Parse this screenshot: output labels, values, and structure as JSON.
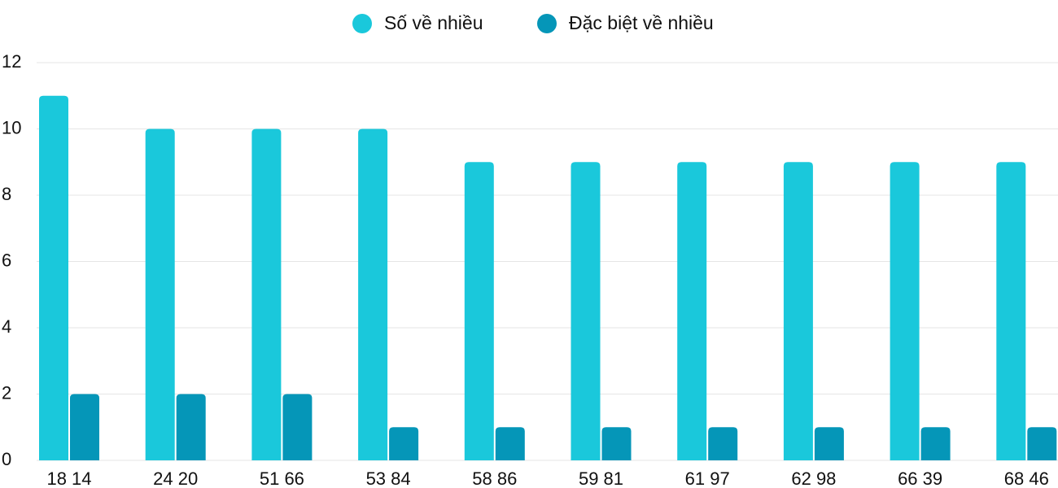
{
  "chart_data": {
    "type": "bar",
    "categories": [
      "18 14",
      "24 20",
      "51 66",
      "53 84",
      "58 86",
      "59 81",
      "61 97",
      "62 98",
      "66 39",
      "68 46"
    ],
    "series": [
      {
        "name": "Số về nhiều",
        "color": "#1ac8db",
        "values": [
          11,
          10,
          10,
          10,
          9,
          9,
          9,
          9,
          9,
          9
        ]
      },
      {
        "name": "Đặc biệt về nhiều",
        "color": "#0596b8",
        "values": [
          2,
          2,
          2,
          1,
          1,
          1,
          1,
          1,
          1,
          1
        ]
      }
    ],
    "ylim": [
      0,
      12
    ],
    "yticks": [
      0,
      2,
      4,
      6,
      8,
      10,
      12
    ],
    "grid": true
  }
}
